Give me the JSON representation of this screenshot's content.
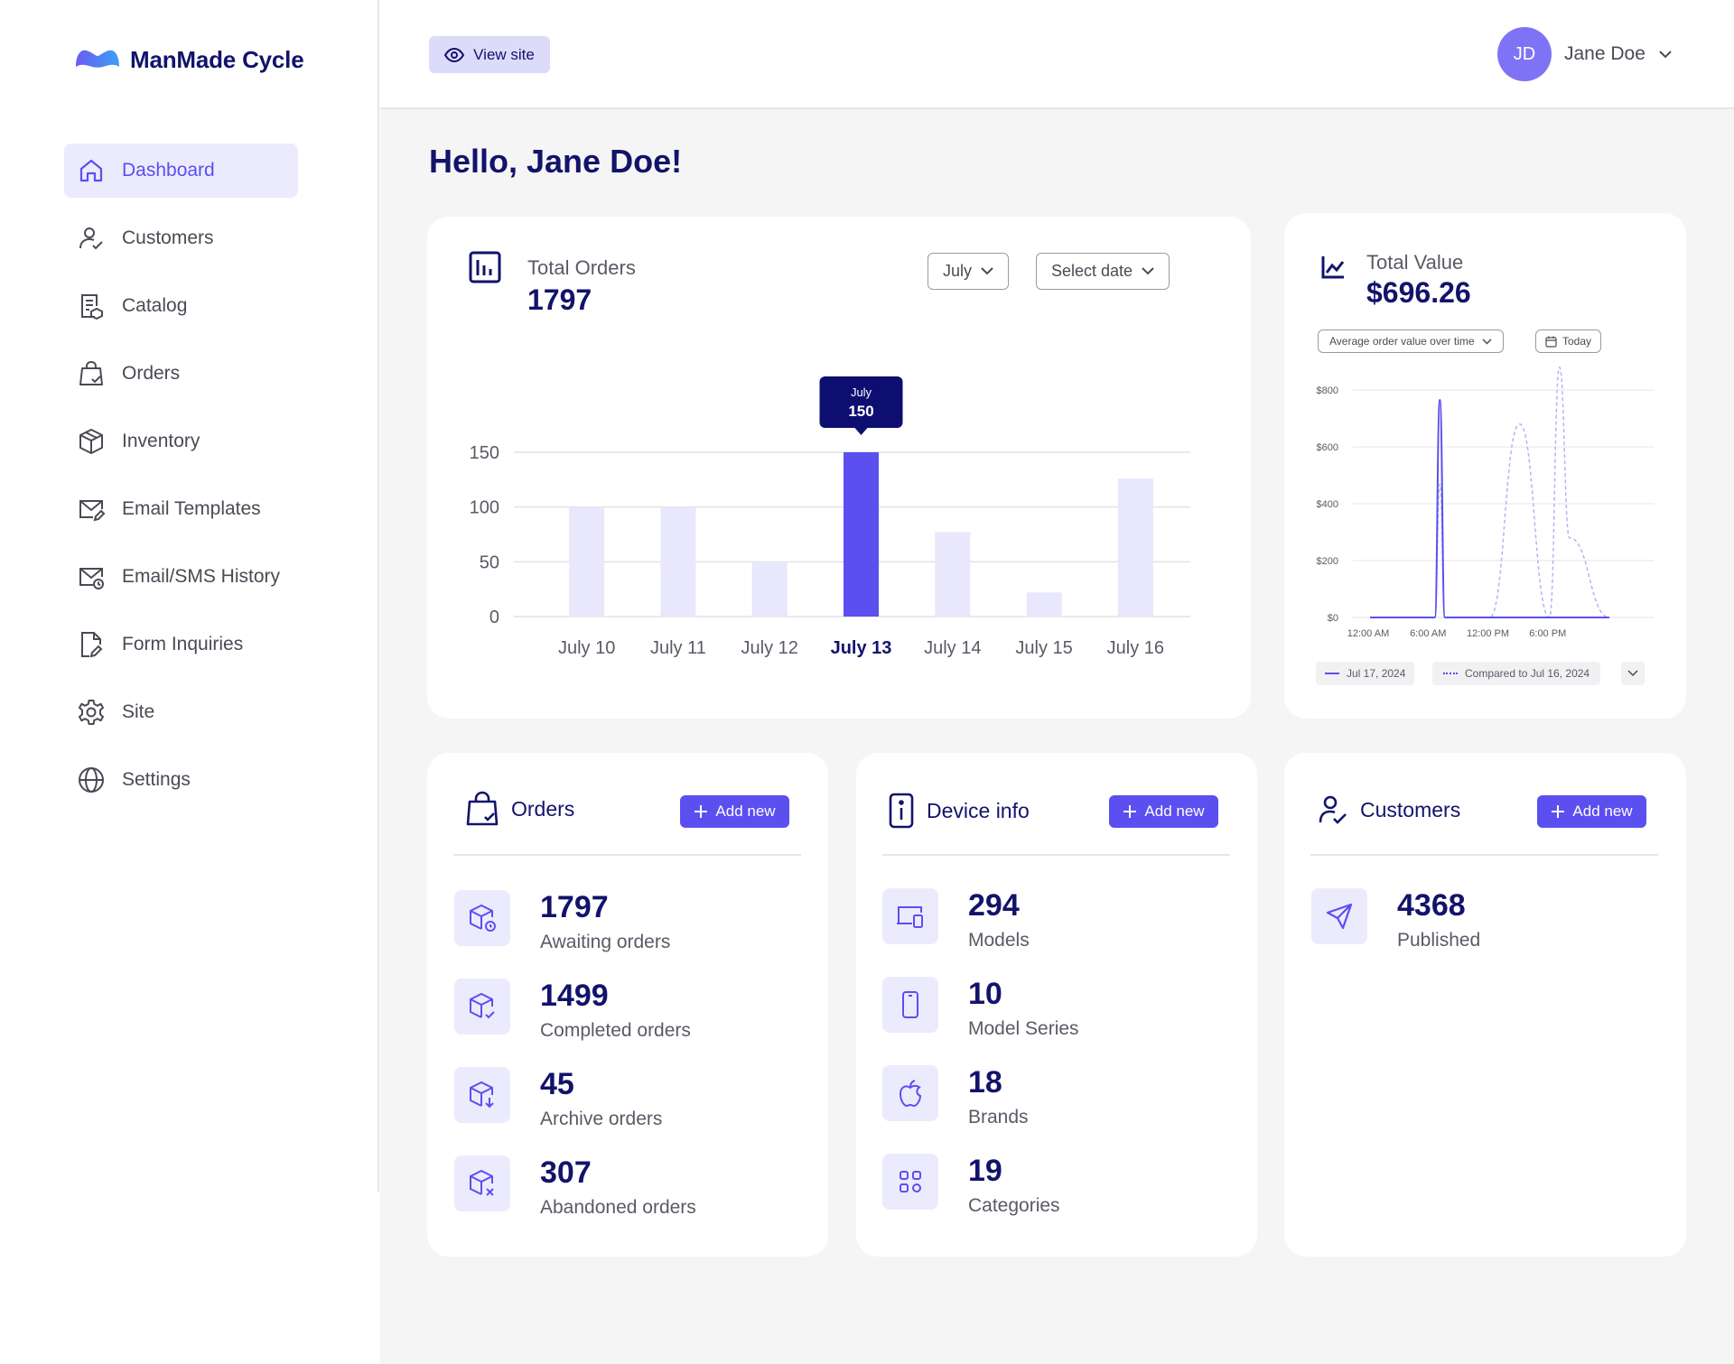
{
  "brand": {
    "name": "ManMade Cycle"
  },
  "nav": [
    {
      "label": "Dashboard",
      "icon": "home-icon",
      "active": true
    },
    {
      "label": "Customers",
      "icon": "user-check-icon"
    },
    {
      "label": "Catalog",
      "icon": "catalog-icon"
    },
    {
      "label": "Orders",
      "icon": "bag-check-icon"
    },
    {
      "label": "Inventory",
      "icon": "box-icon"
    },
    {
      "label": "Email Templates",
      "icon": "mail-edit-icon"
    },
    {
      "label": "Email/SMS History",
      "icon": "mail-clock-icon"
    },
    {
      "label": "Form Inquiries",
      "icon": "file-edit-icon"
    },
    {
      "label": "Site",
      "icon": "gear-icon"
    },
    {
      "label": "Settings",
      "icon": "globe-icon"
    }
  ],
  "topbar": {
    "view_site": "View site",
    "user_initials": "JD",
    "user_name": "Jane Doe"
  },
  "greeting": "Hello, Jane Doe!",
  "total_orders": {
    "title": "Total Orders",
    "value": "1797",
    "month_select": "July",
    "date_select": "Select date"
  },
  "total_value": {
    "title": "Total Value",
    "value": "$696.26",
    "metric_select": "Average order value over time",
    "date_button": "Today",
    "legend_current": "Jul 17, 2024",
    "legend_compare": "Compared to Jul 16, 2024"
  },
  "chart_data": [
    {
      "type": "bar",
      "title": "Total Orders",
      "categories": [
        "July 10",
        "July 11",
        "July 12",
        "July 13",
        "July 14",
        "July 15",
        "July 16"
      ],
      "values": [
        100,
        100,
        50,
        150,
        77,
        22,
        126
      ],
      "highlight": "July 13",
      "ylim": [
        0,
        150
      ],
      "yticks": [
        "0",
        "50",
        "100",
        "150"
      ],
      "tooltip": {
        "label": "July",
        "value": "150"
      },
      "colors": {
        "bar": "#e8e7fb",
        "highlight": "#5b4ff0"
      },
      "grid": true
    },
    {
      "type": "line",
      "title": "Total Value",
      "xticks": [
        "12:00 AM",
        "6:00 AM",
        "12:00 PM",
        "6:00 PM"
      ],
      "yticks": [
        "$0",
        "$200",
        "$400",
        "$600",
        "$800"
      ],
      "ylim": [
        0,
        800
      ],
      "x": [
        0,
        2,
        4,
        6,
        6.5,
        7,
        7.5,
        8,
        10,
        12,
        15,
        18,
        19,
        20,
        24
      ],
      "series": [
        {
          "name": "Jul 17, 2024",
          "style": "solid",
          "color": "#5b4ff0",
          "values": [
            0,
            0,
            0,
            0,
            0,
            765,
            0,
            0,
            0,
            0,
            0,
            0,
            0,
            0,
            0
          ]
        },
        {
          "name": "Compared to Jul 16, 2024",
          "style": "dashed",
          "color": "#b7b2f4",
          "values": [
            0,
            0,
            0,
            0,
            0,
            470,
            0,
            0,
            0,
            0,
            680,
            0,
            880,
            280,
            0
          ]
        }
      ],
      "grid": true
    }
  ],
  "orders_card": {
    "title": "Orders",
    "add_label": "Add new",
    "items": [
      {
        "value": "1797",
        "label": "Awaiting orders",
        "icon": "box-clock-icon"
      },
      {
        "value": "1499",
        "label": "Completed orders",
        "icon": "box-check-icon"
      },
      {
        "value": "45",
        "label": "Archive orders",
        "icon": "box-download-icon"
      },
      {
        "value": "307",
        "label": "Abandoned orders",
        "icon": "box-x-icon"
      }
    ]
  },
  "device_card": {
    "title": "Device info",
    "add_label": "Add new",
    "items": [
      {
        "value": "294",
        "label": "Models",
        "icon": "devices-icon"
      },
      {
        "value": "10",
        "label": "Model Series",
        "icon": "phone-icon"
      },
      {
        "value": "18",
        "label": "Brands",
        "icon": "apple-icon"
      },
      {
        "value": "19",
        "label": "Categories",
        "icon": "grid-icon"
      }
    ]
  },
  "customers_card": {
    "title": "Customers",
    "add_label": "Add new",
    "items": [
      {
        "value": "4368",
        "label": "Published",
        "icon": "send-icon"
      }
    ]
  }
}
